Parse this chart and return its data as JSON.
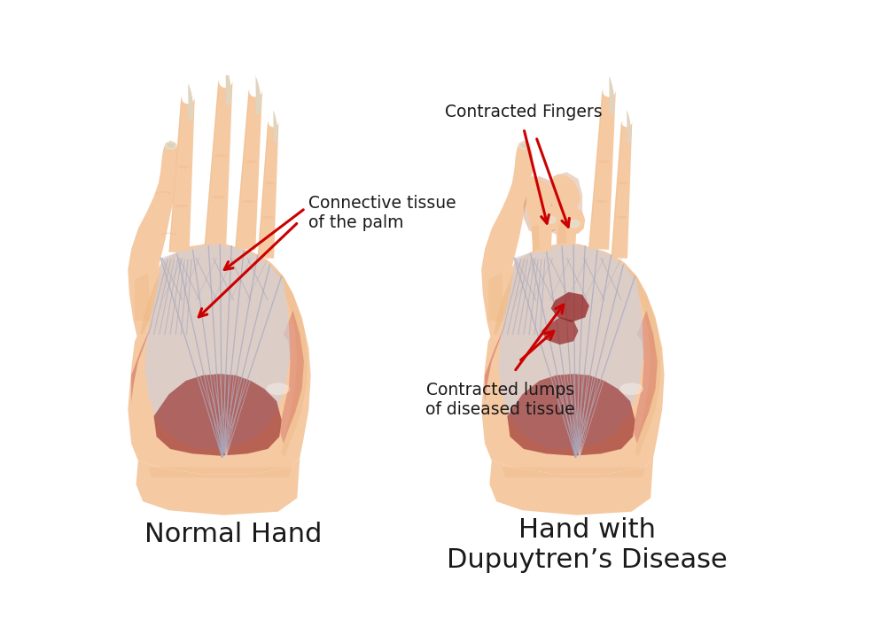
{
  "title_left": "Normal Hand",
  "title_right": "Hand with\nDupuytren’s Disease",
  "label_connective": "Connective tissue\nof the palm",
  "label_contracted_fingers": "Contracted Fingers",
  "label_contracted_lumps": "Contracted lumps\nof diseased tissue",
  "skin_light": "#F5C9A2",
  "skin_mid": "#EDB882",
  "skin_dark": "#D89060",
  "skin_shadow": "#C07848",
  "tissue_light": "#D0D0DC",
  "tissue_mid": "#A8A8BC",
  "tissue_dark": "#888898",
  "muscle_red1": "#7A1818",
  "muscle_red2": "#A02020",
  "muscle_red3": "#C04040",
  "muscle_pink": "#D06060",
  "nail_light": "#E8DCC8",
  "nail_mid": "#C8B898",
  "nail_dark": "#A89878",
  "arrow_color": "#CC0000",
  "text_color": "#1a1a1a",
  "bg_color": "#FFFFFF",
  "title_fontsize": 22,
  "label_fontsize": 13.5
}
